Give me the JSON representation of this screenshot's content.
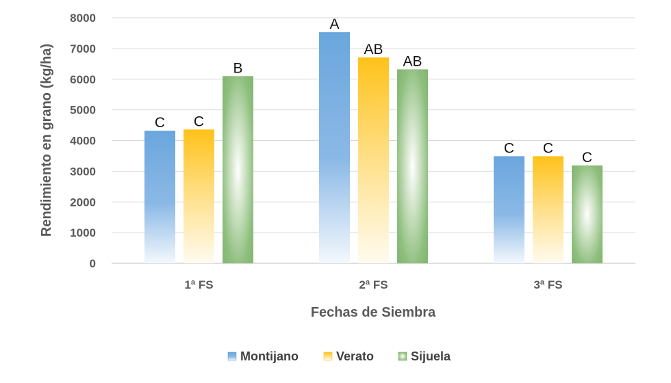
{
  "chart_data": {
    "type": "bar",
    "xlabel": "Fechas de Siembra",
    "ylabel": "Rendimiento en grano (kg/ha)",
    "ylim": [
      0,
      8000
    ],
    "yticks": [
      0,
      1000,
      2000,
      3000,
      4000,
      5000,
      6000,
      7000,
      8000
    ],
    "grid": true,
    "legend_position": "bottom",
    "categories": [
      "1ª FS",
      "2ª FS",
      "3ª FS"
    ],
    "series": [
      {
        "name": "Montijano",
        "color": "#5b9bd5",
        "values": [
          4320,
          7530,
          3490
        ],
        "labels": [
          "C",
          "A",
          "C"
        ]
      },
      {
        "name": "Verato",
        "color": "#ffc000",
        "values": [
          4360,
          6710,
          3490
        ],
        "labels": [
          "C",
          "AB",
          "C"
        ]
      },
      {
        "name": "Sijuela",
        "color": "#70ad47",
        "values": [
          6100,
          6320,
          3190
        ],
        "labels": [
          "B",
          "AB",
          "C"
        ]
      }
    ]
  }
}
